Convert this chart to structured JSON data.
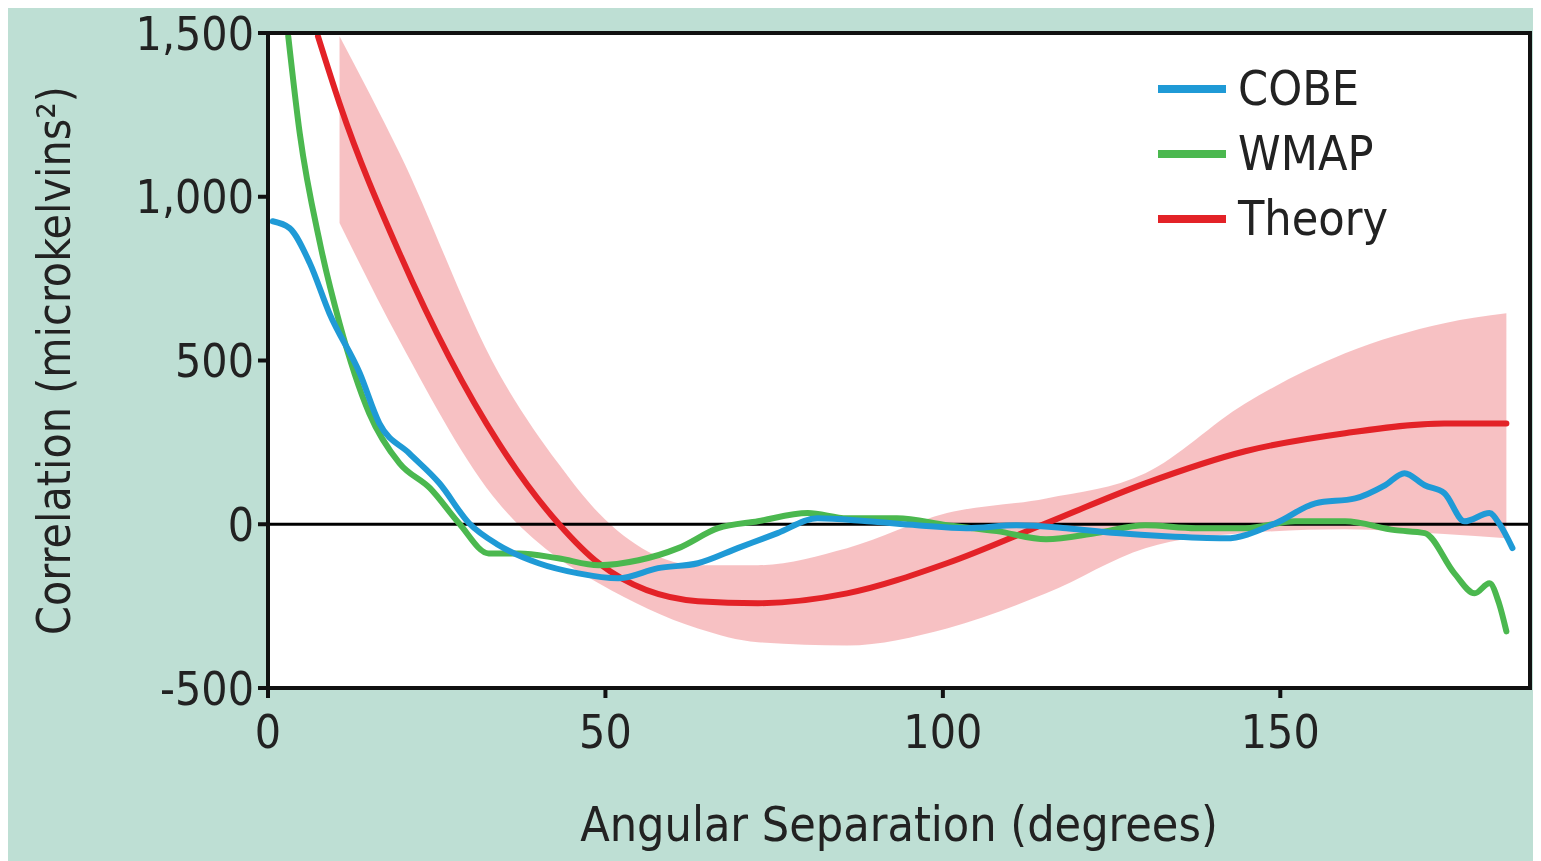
{
  "chart_data": {
    "type": "line",
    "xlabel": "Angular Separation (degrees)",
    "ylabel": "Correlation (microkelvins²)",
    "xlim": [
      0,
      187
    ],
    "ylim": [
      -500,
      1500
    ],
    "xticks": [
      0,
      50,
      100,
      150
    ],
    "yticks": [
      {
        "value": -500,
        "label": "-500"
      },
      0,
      500,
      {
        "value": 1000,
        "label": "1,000"
      },
      {
        "value": 1500,
        "label": "1,500"
      }
    ],
    "grid": false,
    "legend": "top right",
    "line_style": "solid",
    "marker": "none",
    "ref_lines": [
      {
        "axis": "y",
        "value": 0,
        "color": "#000000"
      }
    ],
    "series": [
      {
        "name": "COBE",
        "color": "#1f9ad6",
        "x": [
          0.7,
          3.2,
          6.2,
          9.1,
          13.6,
          16.5,
          20.9,
          25.4,
          29.8,
          34.2,
          40.1,
          46,
          51.9,
          57.8,
          63.7,
          69.6,
          75.5,
          81.4,
          88.8,
          96.2,
          103.5,
          110.9,
          118.3,
          125.7,
          133,
          141.9,
          149.3,
          155.2,
          161.1,
          165.5,
          168.4,
          171.4,
          174.3,
          177.3,
          181,
          182.4,
          184.4
        ],
        "values": [
          925,
          904,
          797,
          644,
          461,
          308,
          217,
          125,
          3,
          -64,
          -119,
          -150,
          -165,
          -134,
          -119,
          -73,
          -27,
          18,
          9,
          -3,
          -12,
          -3,
          -12,
          -27,
          -37,
          -43,
          3,
          64,
          79,
          119,
          156,
          119,
          95,
          9,
          34,
          3,
          -73
        ]
      },
      {
        "name": "WMAP",
        "color": "#4bb84f",
        "x": [
          3,
          4.7,
          7.7,
          10.6,
          15,
          19.5,
          24,
          28.3,
          32.7,
          37.2,
          43,
          49,
          54.9,
          60.8,
          66.7,
          72.6,
          80,
          85.8,
          93.2,
          100.6,
          108,
          115.3,
          122.7,
          130,
          137.5,
          144.8,
          152.2,
          159.6,
          167,
          171.4,
          175.8,
          178.8,
          181,
          182.4,
          183.5
        ],
        "values": [
          1490,
          1194,
          858,
          614,
          339,
          186,
          110,
          3,
          -89,
          -89,
          -104,
          -125,
          -110,
          -73,
          -12,
          9,
          34,
          18,
          18,
          -3,
          -21,
          -46,
          -27,
          -3,
          -12,
          -12,
          9,
          9,
          -18,
          -27,
          -150,
          -211,
          -180,
          -241,
          -327
        ]
      },
      {
        "name": "Theory",
        "color": "#e32227",
        "x": [
          7.4,
          10.6,
          19.5,
          34.2,
          43,
          49,
          63.7,
          72.6,
          85.8,
          100.6,
          115.3,
          130,
          144.8,
          159.6,
          174.3,
          183.5
        ],
        "values": [
          1490,
          1285,
          827,
          247,
          3,
          -119,
          -235,
          -241,
          -211,
          -119,
          3,
          125,
          223,
          278,
          308,
          308
        ],
        "upper": [
          null,
          1490,
          1133,
          461,
          186,
          34,
          -125,
          -125,
          -73,
          34,
          79,
          156,
          369,
          522,
          614,
          644
        ],
        "lower": [
          null,
          920,
          560,
          64,
          -104,
          -180,
          -318,
          -360,
          -370,
          -318,
          -211,
          -73,
          -27,
          -15,
          -30,
          -43
        ]
      }
    ]
  }
}
